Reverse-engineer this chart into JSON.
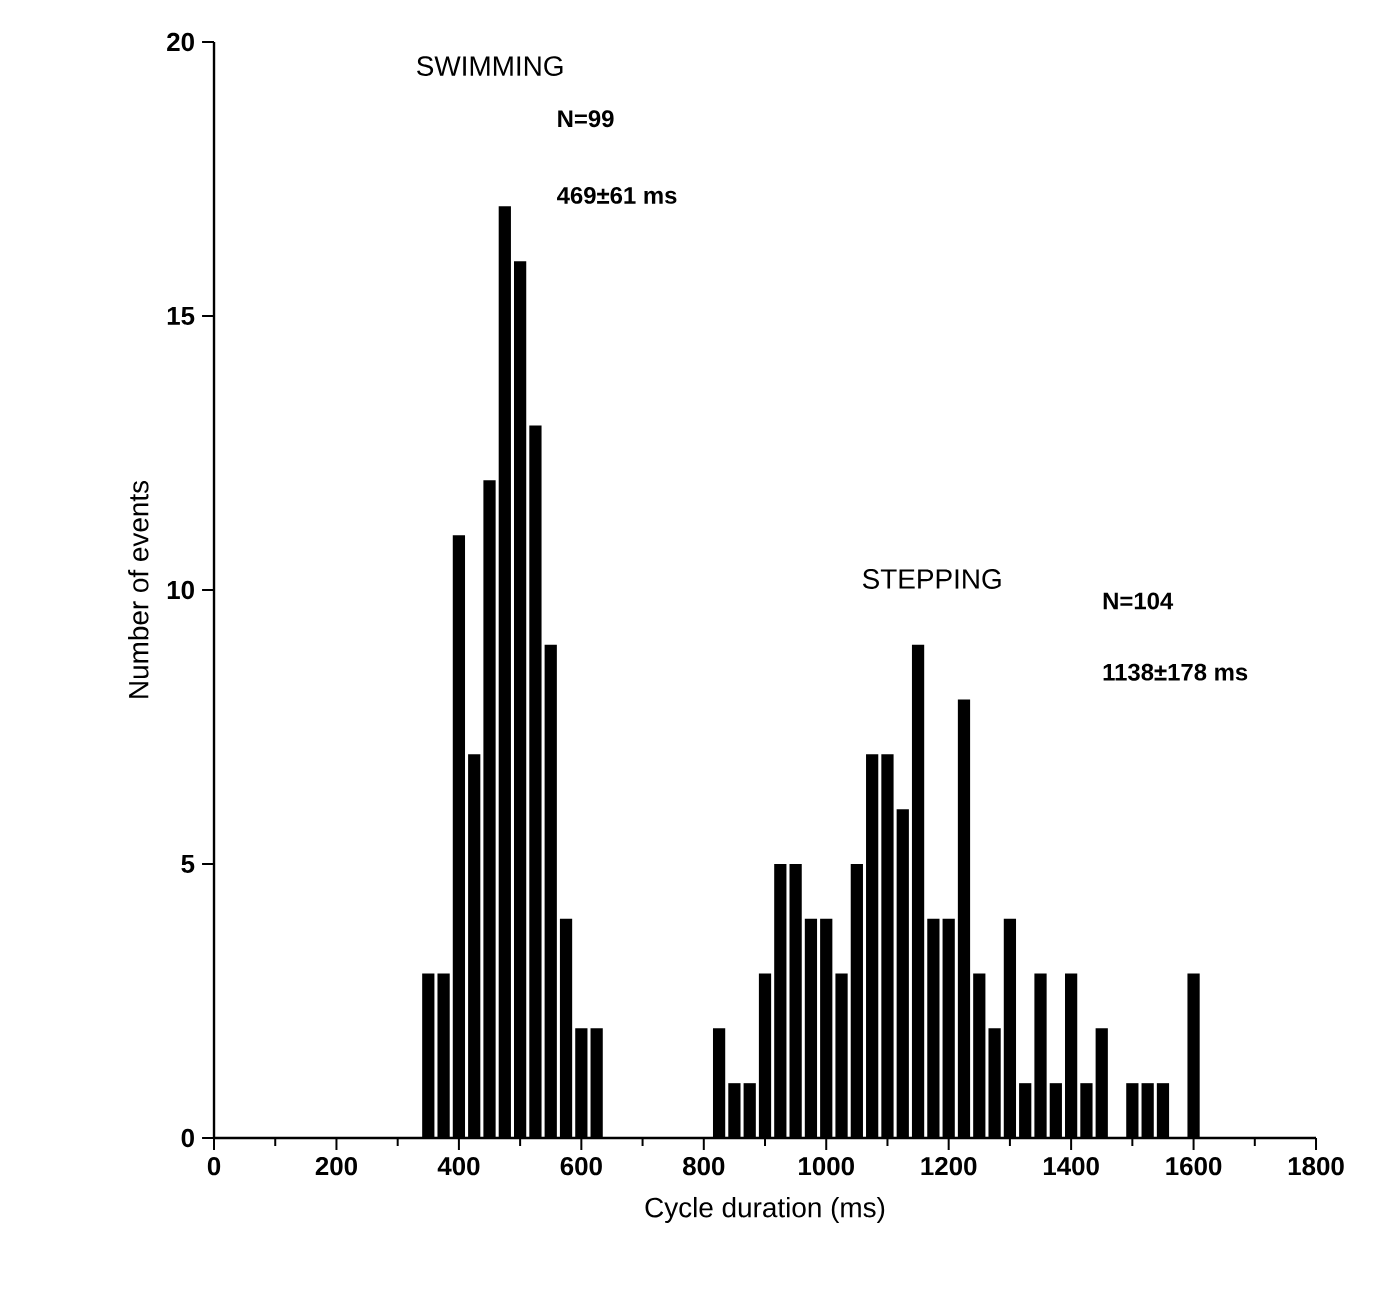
{
  "chart_data": {
    "type": "histogram",
    "xlabel": "Cycle duration (ms)",
    "ylabel": "Number of events",
    "bins": [
      337.5,
      362.5,
      387.5,
      412.5,
      437.5,
      462.5,
      487.5,
      512.5,
      537.5,
      562.5,
      587.5,
      612.5,
      637.5,
      662.5,
      687.5,
      712.5,
      737.5,
      762.5,
      787.5,
      812.5,
      837.5,
      862.5,
      887.5,
      912.5,
      937.5,
      962.5,
      987.5,
      1012.5,
      1037.5,
      1062.5,
      1087.5,
      1112.5,
      1137.5,
      1162.5,
      1187.5,
      1212.5,
      1237.5,
      1262.5,
      1287.5,
      1312.5,
      1337.5,
      1362.5,
      1387.5,
      1412.5,
      1437.5,
      1462.5,
      1487.5,
      1512.5,
      1537.5,
      1562.5,
      1587.5,
      1612.5
    ],
    "values": [
      3,
      3,
      11,
      7,
      12,
      17,
      16,
      13,
      9,
      4,
      2,
      2,
      0,
      0,
      0,
      0,
      0,
      0,
      0,
      2,
      1,
      1,
      3,
      5,
      5,
      4,
      4,
      3,
      5,
      7,
      7,
      6,
      9,
      4,
      4,
      8,
      3,
      2,
      4,
      1,
      3,
      1,
      3,
      1,
      2,
      0,
      1,
      1,
      1,
      0,
      3
    ],
    "color": "#000000",
    "xlim": [
      0,
      1800
    ],
    "ylim": [
      0,
      20
    ],
    "xticks": [
      0,
      200,
      400,
      600,
      800,
      1000,
      1200,
      1400,
      1600,
      1800
    ],
    "yticks": [
      0,
      5,
      10,
      15,
      20
    ],
    "grid": false,
    "annotations": [
      "SWIMMING",
      "N=99",
      "469±61 ms",
      "STEPPING",
      "N=104",
      "1138±178 ms"
    ]
  }
}
